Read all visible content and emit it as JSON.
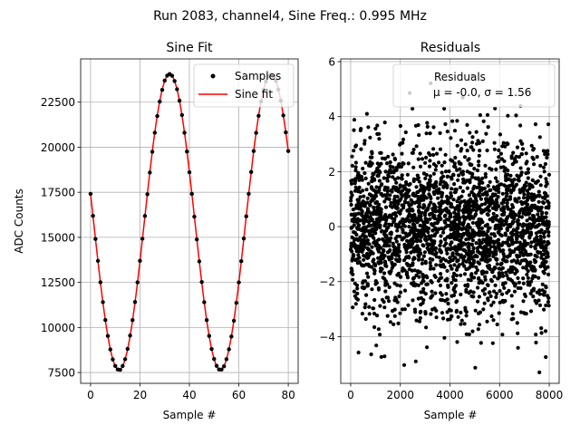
{
  "suptitle": "Run 2083, channel4, Sine Freq.: 0.995 MHz",
  "colors": {
    "samples": "#000000",
    "fit": "#ff0000",
    "grid": "#b0b0b0",
    "residuals": "#000000"
  },
  "chart_data": [
    {
      "type": "line",
      "title": "Sine Fit",
      "xlabel": "Sample #",
      "ylabel": "ADC Counts",
      "xlim": [
        -4,
        84
      ],
      "ylim": [
        6900,
        24900
      ],
      "xticks": [
        0,
        20,
        40,
        60,
        80
      ],
      "yticks": [
        7500,
        10000,
        12500,
        15000,
        17500,
        20000,
        22500
      ],
      "ytick_labels": [
        "7500",
        "10000",
        "12500",
        "15000",
        "17500",
        "20000",
        "22500"
      ],
      "grid": true,
      "legend_position": "top-right",
      "sine_model": {
        "offset": 15850,
        "amplitude": 8200,
        "period": 41.0,
        "peak_sample": 32
      },
      "series": [
        {
          "name": "Samples",
          "style": "markers",
          "x": [
            0,
            80
          ],
          "count": 81,
          "description": "every sample index from 0 to 80"
        },
        {
          "name": "Sine fit",
          "style": "line",
          "x": [
            0,
            80
          ]
        }
      ]
    },
    {
      "type": "scatter",
      "title": "Residuals",
      "xlabel": "Sample #",
      "ylabel": "",
      "xlim": [
        -400,
        8400
      ],
      "ylim": [
        -5.7,
        6.1
      ],
      "xticks": [
        0,
        2000,
        4000,
        6000,
        8000
      ],
      "yticks": [
        -4,
        -2,
        0,
        2,
        4,
        6
      ],
      "grid": true,
      "legend_position": "top-right",
      "stats": {
        "mu": -0.0,
        "sigma": 1.56
      },
      "series": [
        {
          "name": "Residuals",
          "x_range": [
            0,
            8000
          ],
          "count": 8000
        }
      ]
    }
  ],
  "legend": {
    "samples_label": "Samples",
    "fit_label": "Sine fit",
    "residuals_label": "Residuals",
    "residuals_stats": "μ = -0.0, σ = 1.56"
  }
}
